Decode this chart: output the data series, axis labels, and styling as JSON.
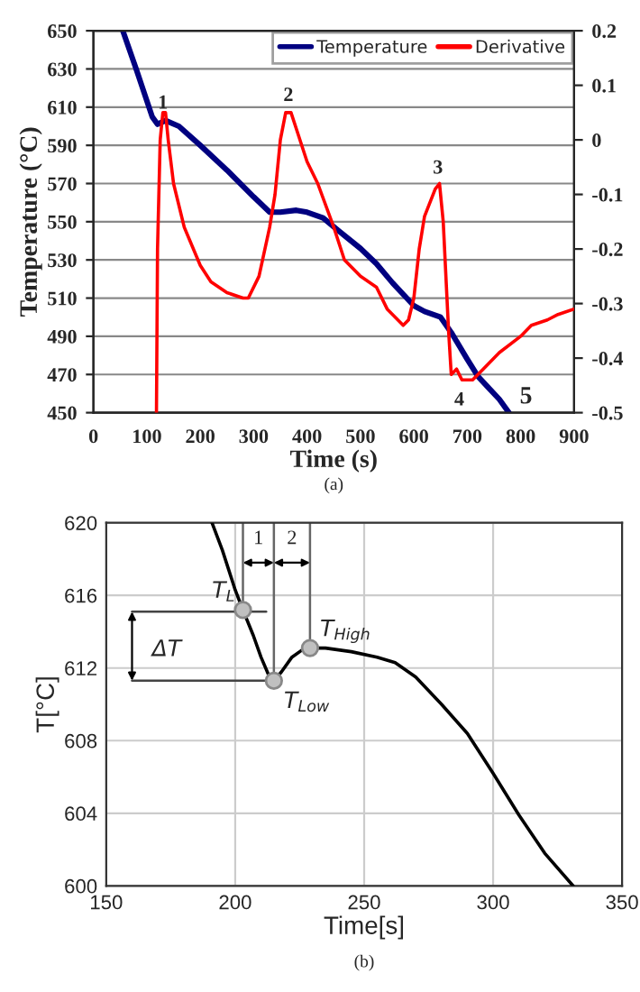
{
  "chart_data": [
    {
      "type": "line",
      "xlabel": "Time (s)",
      "ylabel": "Temperature (°C)",
      "xlim": [
        0,
        900
      ],
      "xticks": [
        0,
        100,
        200,
        300,
        400,
        500,
        600,
        700,
        800,
        900
      ],
      "ylim": [
        450,
        650
      ],
      "yticks": [
        450,
        470,
        490,
        510,
        530,
        550,
        570,
        590,
        610,
        630,
        650
      ],
      "y2lim": [
        -0.5,
        0.2
      ],
      "y2ticks": [
        -0.5,
        -0.4,
        -0.3,
        -0.2,
        -0.1,
        0,
        0.1,
        0.2
      ],
      "grid": "y",
      "legend": "top right",
      "series": [
        {
          "name": "Temperature",
          "color": "#000080",
          "x": [
            55,
            80,
            110,
            120,
            135,
            160,
            200,
            250,
            300,
            330,
            350,
            380,
            400,
            430,
            460,
            500,
            530,
            560,
            600,
            620,
            650,
            670,
            700,
            720,
            740,
            760,
            778
          ],
          "values": [
            650,
            630,
            605,
            601,
            603,
            600,
            590,
            577,
            563,
            555,
            555,
            556,
            555,
            552,
            545,
            536,
            528,
            518,
            506,
            503,
            500,
            492,
            478,
            469,
            463,
            457,
            450
          ]
        },
        {
          "name": "Derivative",
          "color": "#ff0000",
          "axis": "y2",
          "x": [
            118,
            120,
            125,
            130,
            135,
            140,
            150,
            170,
            200,
            220,
            250,
            280,
            290,
            310,
            330,
            340,
            350,
            360,
            370,
            380,
            400,
            420,
            450,
            470,
            500,
            530,
            550,
            580,
            590,
            600,
            610,
            620,
            640,
            648,
            655,
            665,
            670,
            680,
            690,
            710,
            730,
            760,
            800,
            820,
            850,
            870,
            900
          ],
          "values": [
            -0.5,
            -0.2,
            0,
            0.05,
            0.05,
            0,
            -0.08,
            -0.16,
            -0.23,
            -0.26,
            -0.28,
            -0.29,
            -0.29,
            -0.25,
            -0.16,
            -0.1,
            0,
            0.05,
            0.05,
            0.02,
            -0.04,
            -0.08,
            -0.16,
            -0.22,
            -0.25,
            -0.27,
            -0.31,
            -0.34,
            -0.33,
            -0.29,
            -0.2,
            -0.14,
            -0.09,
            -0.08,
            -0.15,
            -0.35,
            -0.43,
            -0.42,
            -0.44,
            -0.44,
            -0.42,
            -0.39,
            -0.36,
            -0.34,
            -0.33,
            -0.32,
            -0.31
          ]
        }
      ],
      "annotations": [
        {
          "text": "1",
          "x": 130,
          "y": 607
        },
        {
          "text": "2",
          "x": 365,
          "y": 611
        },
        {
          "text": "3",
          "x": 645,
          "y": 573
        },
        {
          "text": "4",
          "x": 685,
          "y": 465
        },
        "5",
        "(a)"
      ]
    },
    {
      "type": "line",
      "xlabel": "Time[s]",
      "ylabel": "T[°C]",
      "xlim": [
        150,
        350
      ],
      "xticks": [
        150,
        200,
        250,
        300,
        350
      ],
      "ylim": [
        600,
        620
      ],
      "yticks": [
        600,
        604,
        608,
        612,
        616,
        620
      ],
      "grid": true,
      "series": [
        {
          "color": "#000000",
          "x": [
            191,
            195,
            200,
            203,
            207,
            210,
            213,
            215,
            218,
            222,
            226,
            230,
            235,
            245,
            255,
            262,
            270,
            280,
            290,
            300,
            310,
            320,
            331
          ],
          "values": [
            620,
            618.5,
            616.3,
            615.2,
            613.8,
            612.6,
            611.6,
            611.3,
            611.8,
            612.6,
            613,
            613.1,
            613.1,
            612.9,
            612.6,
            612.3,
            611.5,
            610,
            608.4,
            606.2,
            603.9,
            601.8,
            600
          ]
        },
        {
          "type": "scatter",
          "color": "#c0c0c0",
          "marker": "circle",
          "x": [
            203,
            215,
            229
          ],
          "values": [
            615.2,
            611.3,
            613.1
          ]
        }
      ],
      "ref_lines": [
        {
          "axis": "x",
          "value": 203
        },
        {
          "axis": "x",
          "value": 215
        },
        {
          "axis": "x",
          "value": 229
        },
        {
          "axis": "y",
          "value": 615.1
        },
        {
          "axis": "y",
          "value": 611.3
        }
      ],
      "annotations": [
        {
          "text": "T$_{L}$",
          "x": 203,
          "y": 615.2
        },
        {
          "text": "T$_{Low}$",
          "x": 215,
          "y": 611.3
        },
        {
          "text": "T$_{High}$",
          "x": 229,
          "y": 613.1
        },
        {
          "text": "ΔT",
          "x": 160,
          "y": 611.3
        },
        "1",
        "2",
        "(b)"
      ]
    }
  ]
}
